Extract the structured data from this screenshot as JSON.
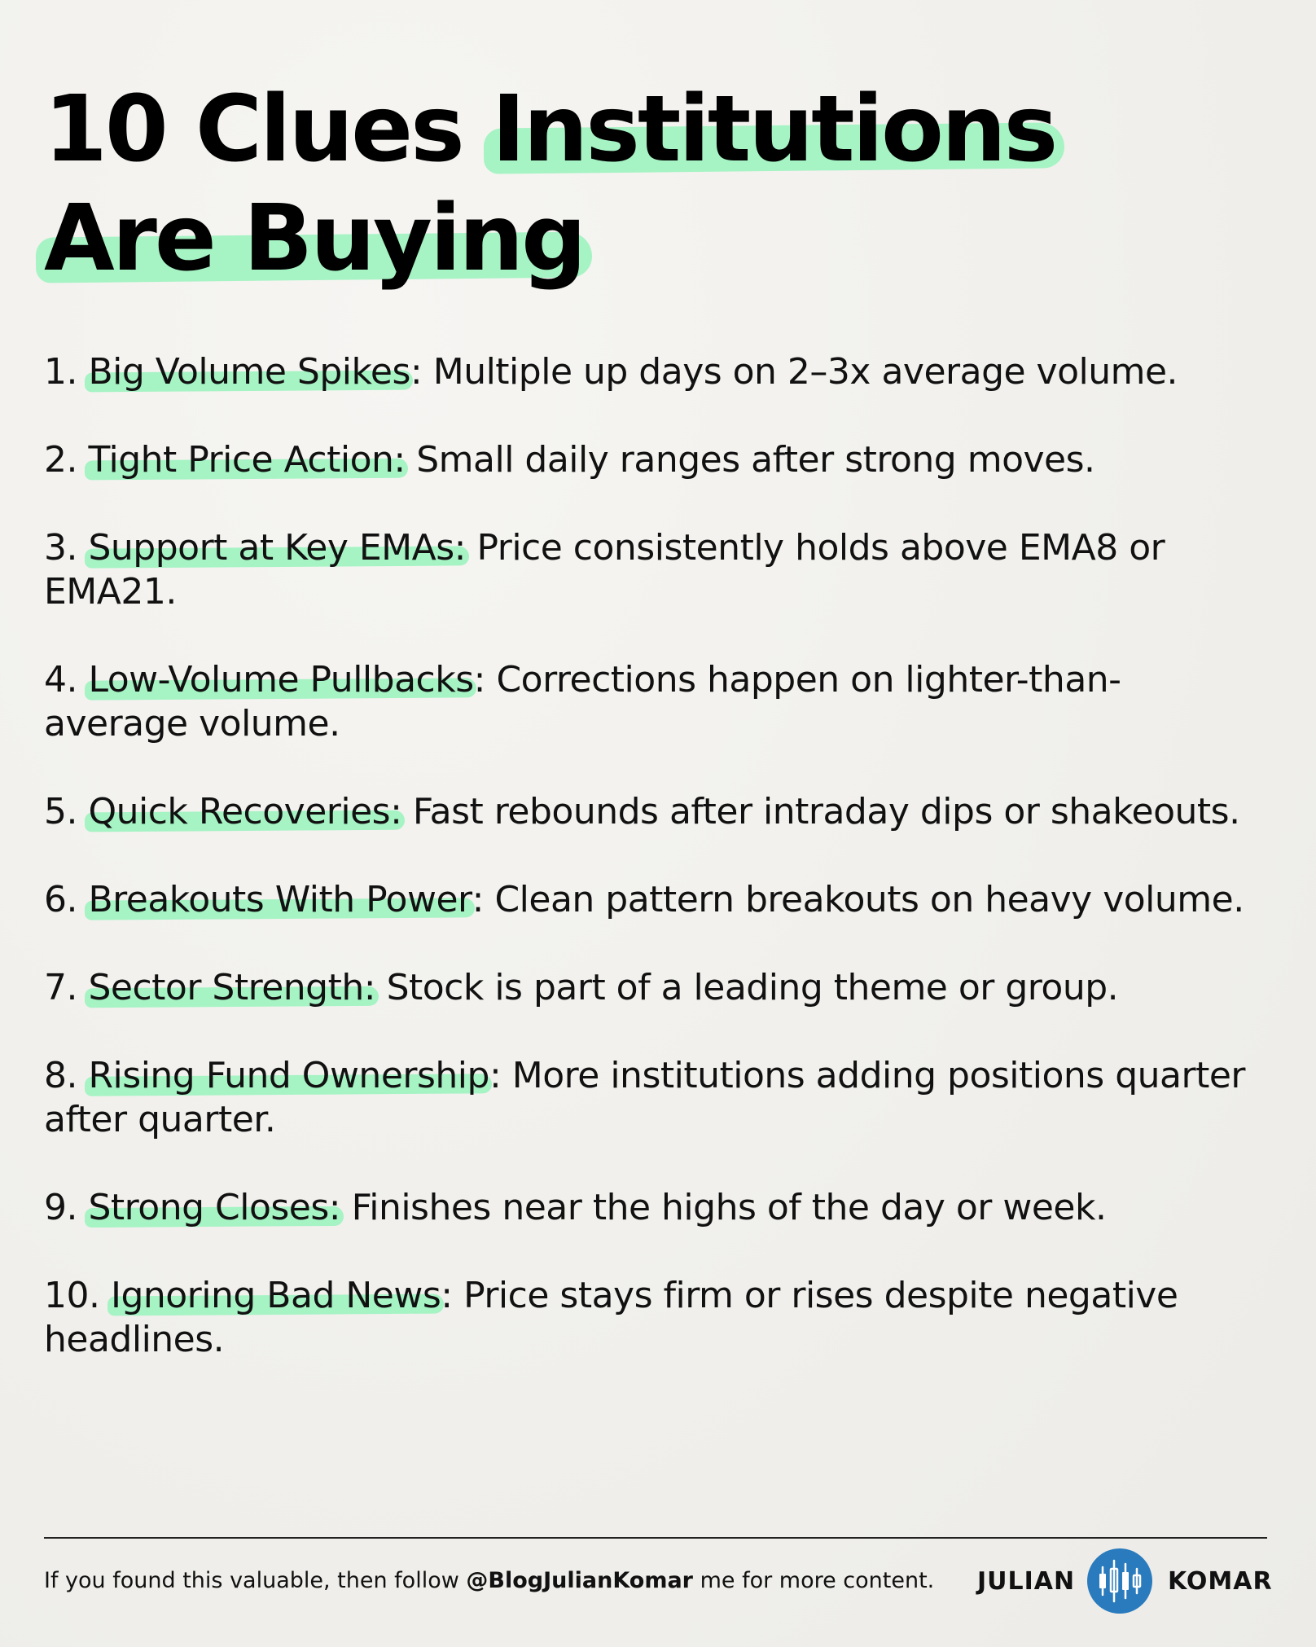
{
  "title": {
    "lead": "10 Clues ",
    "highlight_1": "Institutions",
    "highlight_2": "Are Buying"
  },
  "items": [
    {
      "number": "1. ",
      "label": "Big Volume Spikes",
      "after_label": ": ",
      "text": "Multiple up days on 2–3x average volume."
    },
    {
      "number": "2. ",
      "label": "Tight Price Action:",
      "after_label": " ",
      "text": "Small daily ranges after strong moves."
    },
    {
      "number": "3. ",
      "label": "Support at Key EMAs:",
      "after_label": " ",
      "text": "Price consistently holds above EMA8 or EMA21."
    },
    {
      "number": "4. ",
      "label": "Low-Volume Pullbacks",
      "after_label": ": ",
      "text": "Corrections happen on lighter-than-average volume."
    },
    {
      "number": "5. ",
      "label": "Quick Recoveries:",
      "after_label": " ",
      "text": "Fast rebounds after intraday dips or shakeouts."
    },
    {
      "number": "6. ",
      "label": "Breakouts With Power",
      "after_label": ": ",
      "text": "Clean pattern breakouts on heavy volume."
    },
    {
      "number": "7. ",
      "label": "Sector Strength:",
      "after_label": " ",
      "text": "Stock is part of a leading theme or group."
    },
    {
      "number": "8. ",
      "label": "Rising Fund Ownership",
      "after_label": ": ",
      "text": "More institutions adding positions quarter after quarter."
    },
    {
      "number": "9. ",
      "label": "Strong Closes:",
      "after_label": " ",
      "text": "Finishes near the highs of the day or week."
    },
    {
      "number": "10. ",
      "label": "Ignoring Bad News",
      "after_label": ": ",
      "text": "Price stays firm or rises despite negative headlines."
    }
  ],
  "footer": {
    "text_before": "If you found this valuable, then follow ",
    "handle": "@BlogJulianKomar",
    "text_after": " me for more content.",
    "brand_first": "JULIAN",
    "brand_last": "KOMAR"
  },
  "colors": {
    "background": "#f2f1ed",
    "highlight": "#a6f3c4",
    "text": "#111111",
    "logo_blue": "#2a7bbd"
  },
  "icons": {
    "brand_logo": "candlestick-chart-icon"
  }
}
